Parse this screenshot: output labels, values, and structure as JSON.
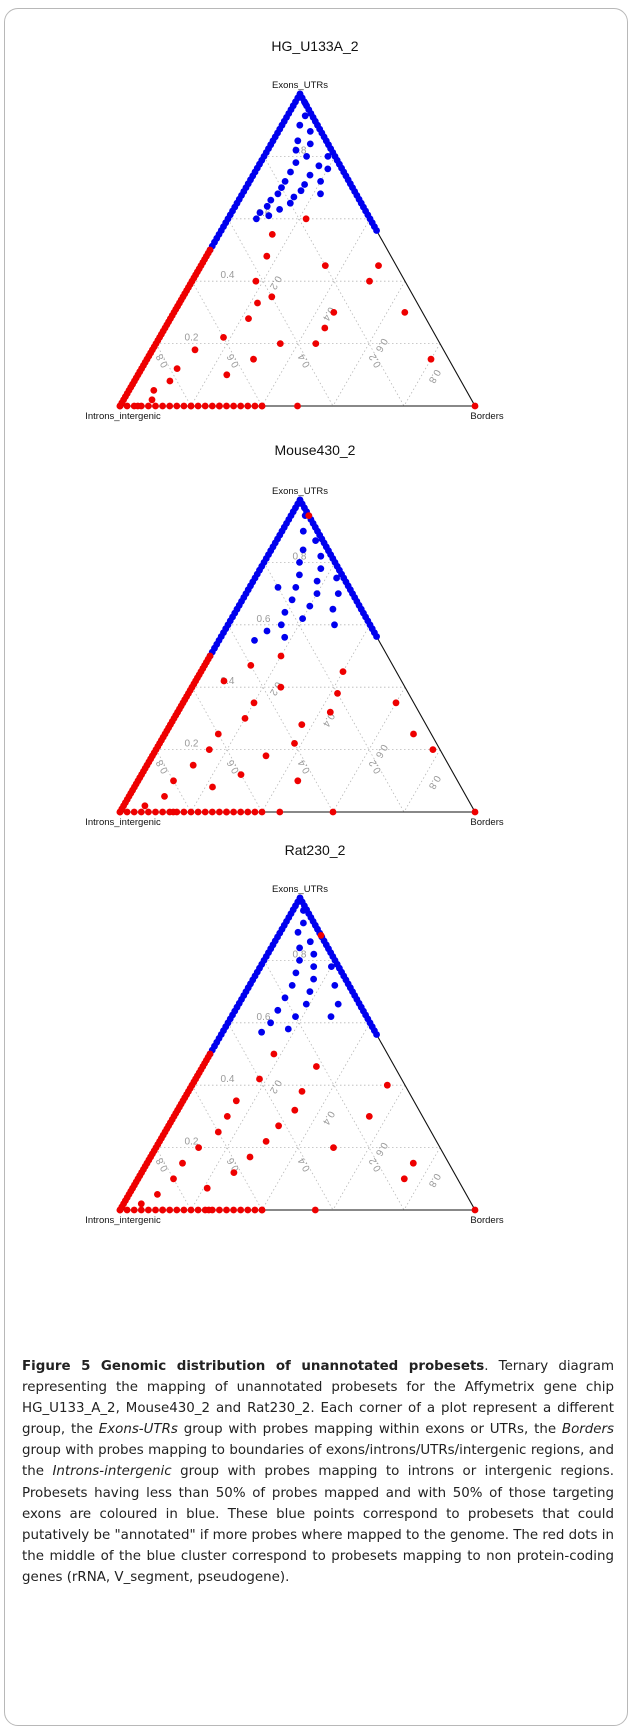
{
  "chart_data": [
    {
      "type": "scatter",
      "subtype": "ternary",
      "title": "HG_U133A_2",
      "corners": {
        "top": "Exons_UTRs",
        "left": "Introns_intergenic",
        "right": "Borders"
      },
      "tick_labels": [
        "0.2",
        "0.4",
        "0.6",
        "0.8"
      ],
      "grid": "dotted",
      "series": [
        {
          "color": "#0000ee",
          "points": [
            [
              0.97,
              0.0,
              0.03
            ],
            [
              0.93,
              0.02,
              0.05
            ],
            [
              0.9,
              0.05,
              0.05
            ],
            [
              0.88,
              0.03,
              0.09
            ],
            [
              0.85,
              0.08,
              0.07
            ],
            [
              0.84,
              0.05,
              0.11
            ],
            [
              0.82,
              0.1,
              0.08
            ],
            [
              0.8,
              0.08,
              0.12
            ],
            [
              0.78,
              0.12,
              0.1
            ],
            [
              0.77,
              0.06,
              0.17
            ],
            [
              0.75,
              0.15,
              0.1
            ],
            [
              0.74,
              0.1,
              0.16
            ],
            [
              0.72,
              0.18,
              0.1
            ],
            [
              0.71,
              0.13,
              0.16
            ],
            [
              0.7,
              0.2,
              0.1
            ],
            [
              0.69,
              0.15,
              0.16
            ],
            [
              0.68,
              0.22,
              0.1
            ],
            [
              0.67,
              0.18,
              0.15
            ],
            [
              0.66,
              0.25,
              0.09
            ],
            [
              0.65,
              0.2,
              0.15
            ],
            [
              0.64,
              0.27,
              0.09
            ],
            [
              0.63,
              0.24,
              0.13
            ],
            [
              0.62,
              0.3,
              0.08
            ],
            [
              0.61,
              0.28,
              0.11
            ],
            [
              0.6,
              0.32,
              0.08
            ],
            [
              0.76,
              0.04,
              0.2
            ],
            [
              0.8,
              0.02,
              0.18
            ],
            [
              0.72,
              0.08,
              0.2
            ],
            [
              0.68,
              0.1,
              0.22
            ]
          ]
        },
        {
          "color": "#ee0000",
          "points": [
            [
              0.45,
              0.2,
              0.35
            ],
            [
              0.4,
              0.1,
              0.5
            ],
            [
              0.35,
              0.4,
              0.25
            ],
            [
              0.3,
              0.25,
              0.45
            ],
            [
              0.28,
              0.5,
              0.22
            ],
            [
              0.25,
              0.3,
              0.45
            ],
            [
              0.22,
              0.6,
              0.18
            ],
            [
              0.2,
              0.45,
              0.35
            ],
            [
              0.18,
              0.7,
              0.12
            ],
            [
              0.15,
              0.55,
              0.3
            ],
            [
              0.12,
              0.78,
              0.1
            ],
            [
              0.1,
              0.65,
              0.25
            ],
            [
              0.08,
              0.82,
              0.1
            ],
            [
              0.05,
              0.88,
              0.07
            ],
            [
              0.02,
              0.9,
              0.08
            ],
            [
              0.0,
              0.5,
              0.5
            ],
            [
              0.0,
              0.6,
              0.4
            ],
            [
              0.0,
              0.72,
              0.28
            ],
            [
              0.0,
              0.8,
              0.2
            ],
            [
              0.0,
              0.95,
              0.05
            ],
            [
              0.0,
              0.0,
              1.0
            ],
            [
              0.15,
              0.05,
              0.8
            ],
            [
              0.3,
              0.05,
              0.65
            ],
            [
              0.45,
              0.05,
              0.5
            ],
            [
              0.2,
              0.35,
              0.45
            ],
            [
              0.33,
              0.45,
              0.22
            ],
            [
              0.4,
              0.42,
              0.18
            ],
            [
              0.48,
              0.35,
              0.17
            ],
            [
              0.55,
              0.3,
              0.15
            ],
            [
              0.6,
              0.18,
              0.22
            ]
          ]
        }
      ]
    },
    {
      "type": "scatter",
      "subtype": "ternary",
      "title": "Mouse430_2",
      "corners": {
        "top": "Exons_UTRs",
        "left": "Introns_intergenic",
        "right": "Borders"
      },
      "tick_labels": [
        "0.2",
        "0.4",
        "0.6",
        "0.8"
      ],
      "grid": "dotted",
      "series": [
        {
          "color": "#0000ee",
          "points": [
            [
              0.95,
              0.01,
              0.04
            ],
            [
              0.9,
              0.04,
              0.06
            ],
            [
              0.87,
              0.02,
              0.11
            ],
            [
              0.84,
              0.07,
              0.09
            ],
            [
              0.82,
              0.03,
              0.15
            ],
            [
              0.8,
              0.1,
              0.1
            ],
            [
              0.78,
              0.05,
              0.17
            ],
            [
              0.76,
              0.12,
              0.12
            ],
            [
              0.74,
              0.08,
              0.18
            ],
            [
              0.72,
              0.15,
              0.13
            ],
            [
              0.7,
              0.1,
              0.2
            ],
            [
              0.68,
              0.18,
              0.14
            ],
            [
              0.66,
              0.14,
              0.2
            ],
            [
              0.64,
              0.22,
              0.14
            ],
            [
              0.62,
              0.18,
              0.2
            ],
            [
              0.6,
              0.25,
              0.15
            ],
            [
              0.58,
              0.3,
              0.12
            ],
            [
              0.56,
              0.26,
              0.18
            ],
            [
              0.55,
              0.35,
              0.1
            ],
            [
              0.75,
              0.02,
              0.23
            ],
            [
              0.7,
              0.04,
              0.26
            ],
            [
              0.65,
              0.08,
              0.27
            ],
            [
              0.6,
              0.1,
              0.3
            ],
            [
              0.72,
              0.2,
              0.08
            ]
          ]
        },
        {
          "color": "#ee0000",
          "points": [
            [
              0.5,
              0.3,
              0.2
            ],
            [
              0.45,
              0.15,
              0.4
            ],
            [
              0.4,
              0.35,
              0.25
            ],
            [
              0.38,
              0.2,
              0.42
            ],
            [
              0.35,
              0.45,
              0.2
            ],
            [
              0.32,
              0.25,
              0.43
            ],
            [
              0.3,
              0.5,
              0.2
            ],
            [
              0.28,
              0.35,
              0.37
            ],
            [
              0.25,
              0.6,
              0.15
            ],
            [
              0.22,
              0.4,
              0.38
            ],
            [
              0.2,
              0.65,
              0.15
            ],
            [
              0.18,
              0.5,
              0.32
            ],
            [
              0.15,
              0.72,
              0.13
            ],
            [
              0.12,
              0.6,
              0.28
            ],
            [
              0.1,
              0.8,
              0.1
            ],
            [
              0.08,
              0.7,
              0.22
            ],
            [
              0.05,
              0.85,
              0.1
            ],
            [
              0.02,
              0.92,
              0.06
            ],
            [
              0.0,
              0.4,
              0.6
            ],
            [
              0.0,
              0.55,
              0.45
            ],
            [
              0.0,
              0.7,
              0.3
            ],
            [
              0.0,
              0.85,
              0.15
            ],
            [
              0.0,
              0.0,
              1.0
            ],
            [
              0.2,
              0.02,
              0.78
            ],
            [
              0.25,
              0.05,
              0.7
            ],
            [
              0.35,
              0.05,
              0.6
            ],
            [
              0.1,
              0.45,
              0.45
            ],
            [
              0.42,
              0.5,
              0.08
            ],
            [
              0.47,
              0.4,
              0.13
            ],
            [
              0.95,
              0.0,
              0.05
            ]
          ]
        }
      ]
    },
    {
      "type": "scatter",
      "subtype": "ternary",
      "title": "Rat230_2",
      "corners": {
        "top": "Exons_UTRs",
        "left": "Introns_intergenic",
        "right": "Borders"
      },
      "tick_labels": [
        "0.2",
        "0.4",
        "0.6",
        "0.8"
      ],
      "grid": "dotted",
      "series": [
        {
          "color": "#0000ee",
          "points": [
            [
              0.96,
              0.01,
              0.03
            ],
            [
              0.92,
              0.03,
              0.05
            ],
            [
              0.89,
              0.06,
              0.05
            ],
            [
              0.86,
              0.04,
              0.1
            ],
            [
              0.84,
              0.08,
              0.08
            ],
            [
              0.82,
              0.05,
              0.13
            ],
            [
              0.8,
              0.1,
              0.1
            ],
            [
              0.78,
              0.07,
              0.15
            ],
            [
              0.76,
              0.13,
              0.11
            ],
            [
              0.74,
              0.09,
              0.17
            ],
            [
              0.72,
              0.16,
              0.12
            ],
            [
              0.7,
              0.12,
              0.18
            ],
            [
              0.68,
              0.2,
              0.12
            ],
            [
              0.66,
              0.15,
              0.19
            ],
            [
              0.64,
              0.24,
              0.12
            ],
            [
              0.62,
              0.2,
              0.18
            ],
            [
              0.6,
              0.28,
              0.12
            ],
            [
              0.58,
              0.24,
              0.18
            ],
            [
              0.57,
              0.32,
              0.11
            ],
            [
              0.78,
              0.02,
              0.2
            ],
            [
              0.72,
              0.04,
              0.24
            ],
            [
              0.66,
              0.06,
              0.28
            ],
            [
              0.62,
              0.1,
              0.28
            ]
          ]
        },
        {
          "color": "#ee0000",
          "points": [
            [
              0.5,
              0.32,
              0.18
            ],
            [
              0.46,
              0.22,
              0.32
            ],
            [
              0.42,
              0.4,
              0.18
            ],
            [
              0.38,
              0.3,
              0.32
            ],
            [
              0.35,
              0.5,
              0.15
            ],
            [
              0.32,
              0.35,
              0.33
            ],
            [
              0.3,
              0.55,
              0.15
            ],
            [
              0.27,
              0.42,
              0.31
            ],
            [
              0.25,
              0.6,
              0.15
            ],
            [
              0.22,
              0.48,
              0.3
            ],
            [
              0.2,
              0.68,
              0.12
            ],
            [
              0.17,
              0.55,
              0.28
            ],
            [
              0.15,
              0.75,
              0.1
            ],
            [
              0.12,
              0.62,
              0.26
            ],
            [
              0.1,
              0.8,
              0.1
            ],
            [
              0.07,
              0.72,
              0.21
            ],
            [
              0.05,
              0.87,
              0.08
            ],
            [
              0.02,
              0.93,
              0.05
            ],
            [
              0.0,
              0.45,
              0.55
            ],
            [
              0.0,
              0.6,
              0.4
            ],
            [
              0.0,
              0.75,
              0.25
            ],
            [
              0.0,
              0.88,
              0.12
            ],
            [
              0.0,
              0.0,
              1.0
            ],
            [
              0.15,
              0.1,
              0.75
            ],
            [
              0.1,
              0.15,
              0.75
            ],
            [
              0.4,
              0.05,
              0.55
            ],
            [
              0.3,
              0.15,
              0.55
            ],
            [
              0.2,
              0.3,
              0.5
            ],
            [
              0.88,
              0.0,
              0.12
            ]
          ]
        }
      ]
    }
  ],
  "caption": {
    "bold": "Figure 5 Genomic distribution of unannotated probesets",
    "parts": [
      {
        "t": ". Ternary diagram representing the mapping of unannotated probesets for the Affymetrix gene chip HG_U133_A_2, Mouse430_2 and Rat230_2. Each corner of a plot represent a different group, the ",
        "i": false
      },
      {
        "t": "Exons-UTRs",
        "i": true
      },
      {
        "t": " group with probes mapping within exons or UTRs, the ",
        "i": false
      },
      {
        "t": "Borders",
        "i": true
      },
      {
        "t": " group with probes mapping to boundaries of exons/introns/UTRs/intergenic regions, and the ",
        "i": false
      },
      {
        "t": "Introns-intergenic",
        "i": true
      },
      {
        "t": " group with probes mapping to introns or intergenic regions. Probesets having less than 50% of probes mapped and with 50% of those targeting exons are coloured in blue. These blue points correspond to probesets that could putatively be \"annotated\" if more probes where mapped to the genome. The red dots in the middle of the blue cluster correspond to probesets mapping to non protein-coding genes (rRNA, V_segment, pseudogene).",
        "i": false
      }
    ]
  }
}
